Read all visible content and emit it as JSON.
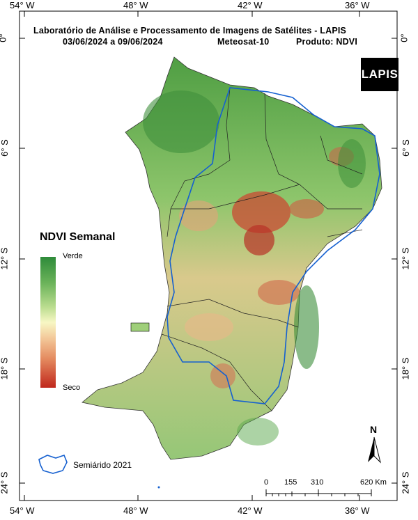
{
  "title": {
    "line1": "Laboratório de Análise e Processamento de Imagens de Satélites - LAPIS",
    "line2_period": "03/06/2024  a  09/06/2024",
    "line2_satellite": "Meteosat-10",
    "line2_product": "Produto:  NDVI"
  },
  "logo_text": "LAPIS",
  "longitude_ticks": [
    "54° W",
    "48° W",
    "42° W",
    "36° W"
  ],
  "latitude_ticks": [
    "0°",
    "6° S",
    "12° S",
    "18° S",
    "24° S"
  ],
  "legend": {
    "title": "NDVI Semanal",
    "high_label": "Verde",
    "low_label": "Seco",
    "colors": [
      "#2e8b3a",
      "#6bb35a",
      "#b9dc8e",
      "#f7f7c4",
      "#f3c99a",
      "#e48a5f",
      "#c0271c"
    ]
  },
  "boundary_legend": {
    "label": "Semiárido 2021",
    "color": "#1560d0"
  },
  "north_arrow": "N",
  "scale_bar": {
    "labels": [
      "0",
      "155",
      "310",
      "620 Km"
    ]
  }
}
